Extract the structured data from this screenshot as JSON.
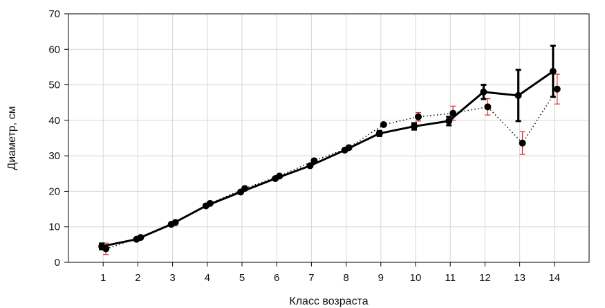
{
  "chart_data": {
    "type": "line",
    "title": "",
    "xlabel": "Класс возраста",
    "ylabel": "Диаметр, см",
    "xlim": [
      0,
      15
    ],
    "ylim": [
      0,
      70
    ],
    "x_ticks": [
      1,
      2,
      3,
      4,
      5,
      6,
      7,
      8,
      9,
      10,
      11,
      12,
      13,
      14
    ],
    "y_ticks": [
      0,
      10,
      20,
      30,
      40,
      50,
      60,
      70
    ],
    "grid": true,
    "legend": "none",
    "series": [
      {
        "style": "solid",
        "color": "#000000",
        "error_bar_color": "#000000",
        "x": [
          1,
          2,
          3,
          4,
          5,
          6,
          7,
          8,
          9,
          10,
          11,
          12,
          13,
          14
        ],
        "y": [
          4.5,
          6.5,
          10.7,
          15.9,
          19.8,
          23.6,
          27.2,
          31.6,
          36.3,
          38.3,
          39.8,
          48.0,
          47.0,
          53.8
        ],
        "err": [
          0.8,
          0.3,
          0.3,
          0.3,
          0.3,
          0.3,
          0.3,
          0.3,
          0.7,
          0.9,
          1.2,
          2.0,
          7.2,
          7.2
        ]
      },
      {
        "style": "dotted",
        "color": "#000000",
        "error_bar_color": "#e03030",
        "x": [
          1,
          2,
          3,
          4,
          5,
          6,
          7,
          8,
          9,
          10,
          11,
          12,
          13,
          14
        ],
        "y": [
          3.8,
          7.0,
          11.2,
          16.6,
          20.8,
          24.3,
          28.6,
          32.3,
          38.8,
          41.0,
          42.0,
          43.8,
          33.6,
          48.8
        ],
        "err": [
          1.6,
          0.3,
          0.3,
          0.3,
          0.3,
          0.3,
          0.3,
          0.3,
          0.4,
          1.2,
          2.0,
          2.3,
          3.2,
          4.2
        ]
      }
    ]
  }
}
